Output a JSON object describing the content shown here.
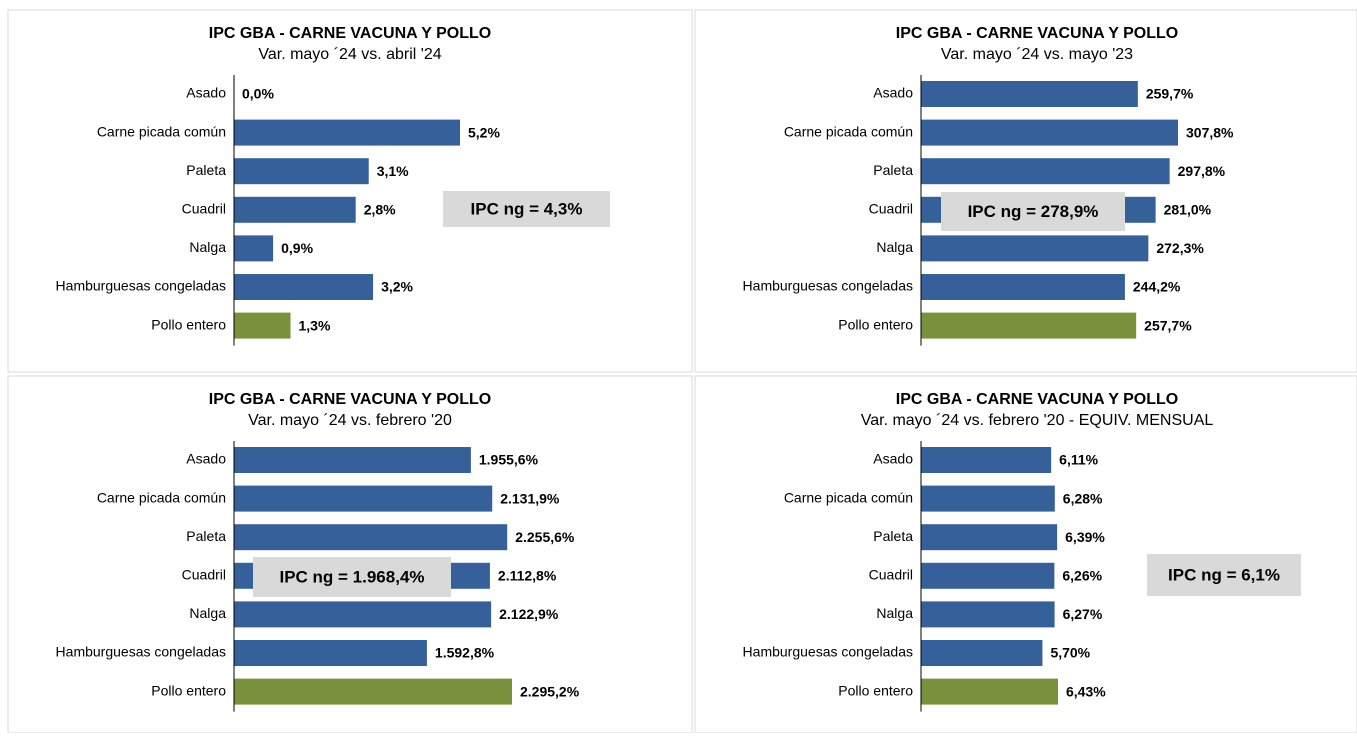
{
  "chart_data": [
    {
      "type": "bar",
      "orientation": "horizontal",
      "title": "IPC GBA - CARNE VACUNA Y POLLO",
      "subtitle": "Var. mayo ´24 vs. abril '24",
      "categories": [
        "Asado",
        "Carne picada común",
        "Paleta",
        "Cuadril",
        "Nalga",
        "Hamburguesas congeladas",
        "Pollo entero"
      ],
      "values": [
        0.0,
        5.2,
        3.1,
        2.8,
        0.9,
        3.2,
        1.3
      ],
      "value_labels": [
        "0,0%",
        "5,2%",
        "3,1%",
        "2,8%",
        "0,9%",
        "3,2%",
        "1,3%"
      ],
      "colors": [
        "#35609a",
        "#35609a",
        "#35609a",
        "#35609a",
        "#35609a",
        "#35609a",
        "#77923a"
      ],
      "annotation": "IPC ng = 4,3%"
    },
    {
      "type": "bar",
      "orientation": "horizontal",
      "title": "IPC GBA - CARNE VACUNA Y POLLO",
      "subtitle": "Var. mayo ´24 vs. mayo '23",
      "categories": [
        "Asado",
        "Carne picada común",
        "Paleta",
        "Cuadril",
        "Nalga",
        "Hamburguesas congeladas",
        "Pollo entero"
      ],
      "values": [
        259.7,
        307.8,
        297.8,
        281.0,
        272.3,
        244.2,
        257.7
      ],
      "value_labels": [
        "259,7%",
        "307,8%",
        "297,8%",
        "281,0%",
        "272,3%",
        "244,2%",
        "257,7%"
      ],
      "colors": [
        "#35609a",
        "#35609a",
        "#35609a",
        "#35609a",
        "#35609a",
        "#35609a",
        "#77923a"
      ],
      "annotation": "IPC ng = 278,9%"
    },
    {
      "type": "bar",
      "orientation": "horizontal",
      "title": "IPC GBA - CARNE VACUNA Y POLLO",
      "subtitle": "Var. mayo ´24 vs. febrero '20",
      "categories": [
        "Asado",
        "Carne picada común",
        "Paleta",
        "Cuadril",
        "Nalga",
        "Hamburguesas congeladas",
        "Pollo entero"
      ],
      "values": [
        1955.6,
        2131.9,
        2255.6,
        2112.8,
        2122.9,
        1592.8,
        2295.2
      ],
      "value_labels": [
        "1.955,6%",
        "2.131,9%",
        "2.255,6%",
        "2.112,8%",
        "2.122,9%",
        "1.592,8%",
        "2.295,2%"
      ],
      "colors": [
        "#35609a",
        "#35609a",
        "#35609a",
        "#35609a",
        "#35609a",
        "#35609a",
        "#77923a"
      ],
      "annotation": "IPC ng = 1.968,4%"
    },
    {
      "type": "bar",
      "orientation": "horizontal",
      "title": "IPC GBA - CARNE VACUNA Y POLLO",
      "subtitle": "Var. mayo ´24 vs. febrero '20 - EQUIV. MENSUAL",
      "categories": [
        "Asado",
        "Carne picada común",
        "Paleta",
        "Cuadril",
        "Nalga",
        "Hamburguesas congeladas",
        "Pollo entero"
      ],
      "values": [
        6.11,
        6.28,
        6.39,
        6.26,
        6.27,
        5.7,
        6.43
      ],
      "value_labels": [
        "6,11%",
        "6,28%",
        "6,39%",
        "6,26%",
        "6,27%",
        "5,70%",
        "6,43%"
      ],
      "colors": [
        "#35609a",
        "#35609a",
        "#35609a",
        "#35609a",
        "#35609a",
        "#35609a",
        "#77923a"
      ],
      "annotation": "IPC ng = 6,1%"
    }
  ]
}
